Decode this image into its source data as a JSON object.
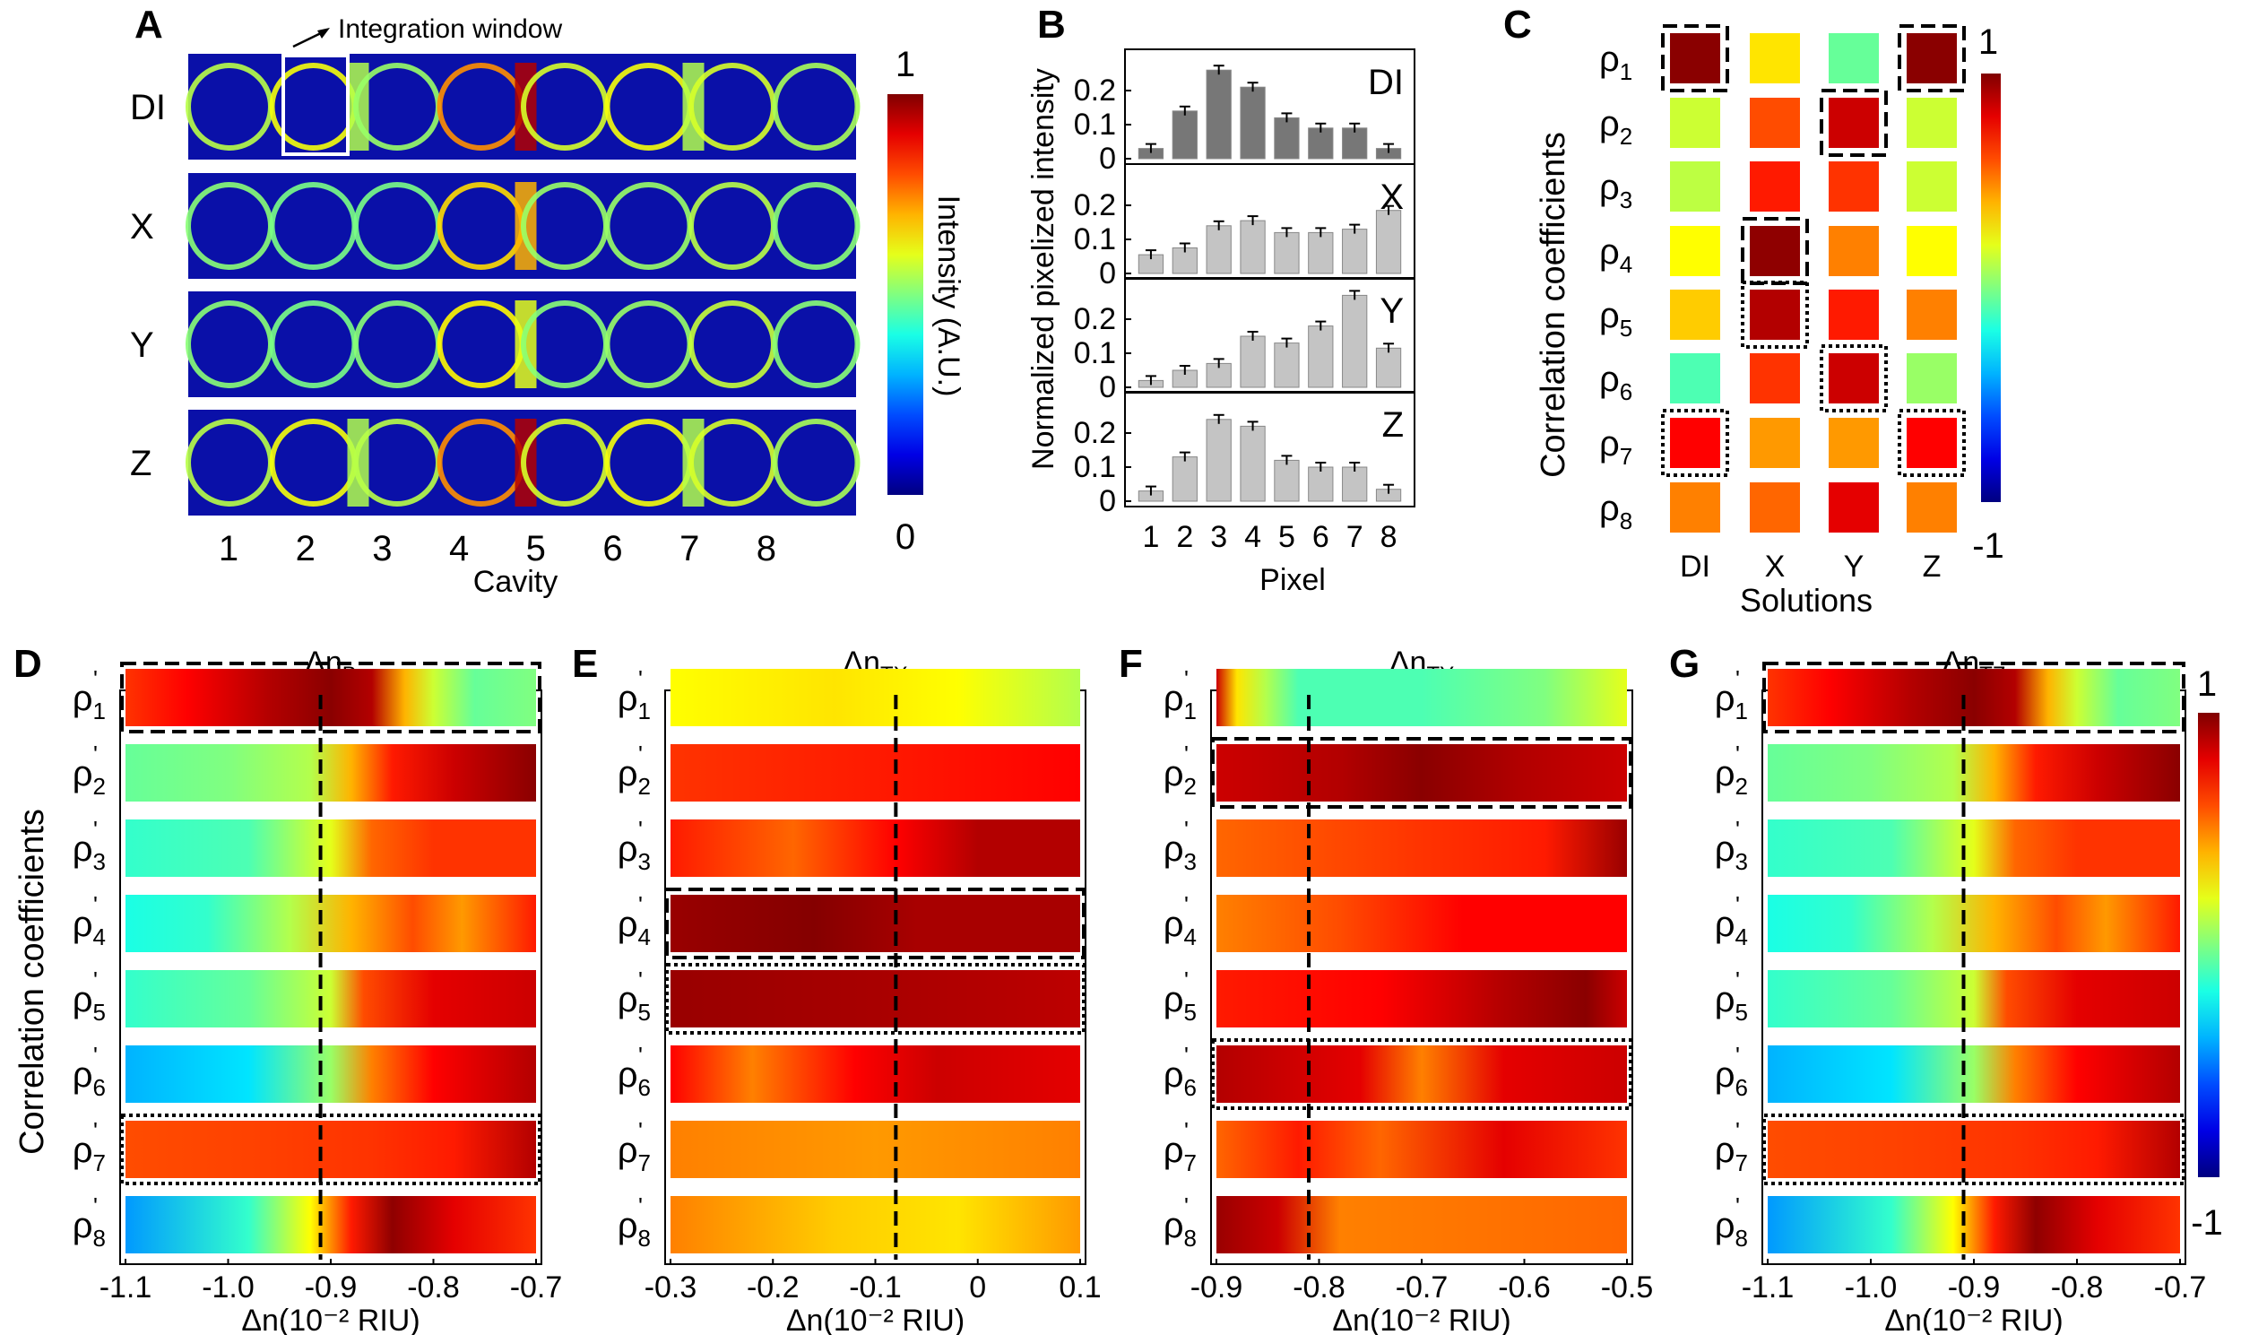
{
  "panels": {
    "A": {
      "label": "A",
      "annotation": "Integration window",
      "rows": [
        "DI",
        "X",
        "Y",
        "Z"
      ],
      "xticks": [
        "1",
        "2",
        "3",
        "4",
        "5",
        "6",
        "7",
        "8"
      ],
      "xlabel": "Cavity",
      "colorbar": {
        "max": "1",
        "min": "0",
        "label": "Intensity (A.U.)"
      }
    },
    "B": {
      "label": "B",
      "ylabel": "Normalized pixelized intensity",
      "xlabel": "Pixel",
      "xticks": [
        "1",
        "2",
        "3",
        "4",
        "5",
        "6",
        "7",
        "8"
      ],
      "yticks": [
        "0",
        "0.1",
        "0.2"
      ]
    },
    "C": {
      "label": "C",
      "ylabel": "Correlation coefficients",
      "xlabel": "Solutions",
      "cols": [
        "DI",
        "X",
        "Y",
        "Z"
      ],
      "rows": [
        "ρ1",
        "ρ2",
        "ρ3",
        "ρ4",
        "ρ5",
        "ρ6",
        "ρ7",
        "ρ8"
      ],
      "colorbar": {
        "max": "1",
        "min": "-1"
      }
    },
    "D": {
      "label": "D",
      "title": "Δn",
      "sub": "B",
      "xlabel": "Δn(10⁻² RIU)",
      "xticks": [
        "-1.1",
        "-1.0",
        "-0.9",
        "-0.8",
        "-0.7"
      ],
      "ylabel": "Correlation coefficients"
    },
    "E": {
      "label": "E",
      "title": "Δn",
      "sub": "TX",
      "xlabel": "Δn(10⁻² RIU)",
      "xticks": [
        "-0.3",
        "-0.2",
        "-0.1",
        "0",
        "0.1"
      ]
    },
    "F": {
      "label": "F",
      "title": "Δn",
      "sub": "TY",
      "xlabel": "Δn(10⁻² RIU)",
      "xticks": [
        "-0.9",
        "-0.8",
        "-0.7",
        "-0.6",
        "-0.5"
      ]
    },
    "G": {
      "label": "G",
      "title": "Δn",
      "sub": "TZ",
      "xlabel": "Δn(10⁻² RIU)",
      "xticks": [
        "-1.1",
        "-1.0",
        "-0.9",
        "-0.8",
        "-0.7"
      ],
      "colorbar": {
        "max": "1",
        "min": "-1"
      }
    }
  },
  "chart_data": [
    {
      "type": "bar",
      "panel": "B",
      "title": "",
      "xlabel": "Pixel",
      "ylabel": "Normalized pixelized intensity",
      "categories": [
        1,
        2,
        3,
        4,
        5,
        6,
        7,
        8
      ],
      "ylim": [
        0,
        0.3
      ],
      "series": [
        {
          "name": "DI",
          "values": [
            0.03,
            0.14,
            0.26,
            0.21,
            0.12,
            0.09,
            0.09,
            0.03
          ],
          "color": "#777777"
        },
        {
          "name": "X",
          "values": [
            0.055,
            0.075,
            0.14,
            0.155,
            0.12,
            0.12,
            0.13,
            0.185
          ],
          "color": "#c4c4c4"
        },
        {
          "name": "Y",
          "values": [
            0.02,
            0.05,
            0.07,
            0.15,
            0.13,
            0.18,
            0.27,
            0.115
          ],
          "color": "#c4c4c4"
        },
        {
          "name": "Z",
          "values": [
            0.03,
            0.13,
            0.24,
            0.22,
            0.12,
            0.1,
            0.1,
            0.035
          ],
          "color": "#c4c4c4"
        }
      ]
    },
    {
      "type": "heatmap",
      "panel": "C",
      "xlabel": "Solutions",
      "ylabel": "Correlation coefficients",
      "categories": [
        "DI",
        "X",
        "Y",
        "Z"
      ],
      "rows": [
        "ρ1",
        "ρ2",
        "ρ3",
        "ρ4",
        "ρ5",
        "ρ6",
        "ρ7",
        "ρ8"
      ],
      "clim": [
        -1,
        1
      ],
      "values": [
        [
          0.98,
          0.3,
          -0.05,
          0.98
        ],
        [
          0.15,
          0.6,
          0.85,
          0.15
        ],
        [
          0.12,
          0.7,
          0.65,
          0.15
        ],
        [
          0.25,
          0.97,
          0.5,
          0.25
        ],
        [
          0.35,
          0.9,
          0.7,
          0.5
        ],
        [
          -0.1,
          0.65,
          0.85,
          0.05
        ],
        [
          0.75,
          0.45,
          0.45,
          0.75
        ],
        [
          0.5,
          0.55,
          0.8,
          0.5
        ]
      ]
    },
    {
      "type": "heatmap",
      "panel": "D",
      "xlabel": "Δn(10⁻² RIU)",
      "xlim": [
        -1.1,
        -0.7
      ],
      "marker_x": -0.91,
      "clim": [
        -1,
        1
      ],
      "rows": [
        "ρ1'",
        "ρ2'",
        "ρ3'",
        "ρ4'",
        "ρ5'",
        "ρ6'",
        "ρ7'",
        "ρ8'"
      ],
      "profiles": [
        [
          [
            0,
            0.65
          ],
          [
            0.15,
            0.75
          ],
          [
            0.35,
            0.9
          ],
          [
            0.5,
            0.98
          ],
          [
            0.6,
            0.9
          ],
          [
            0.68,
            0.4
          ],
          [
            0.75,
            0.15
          ],
          [
            0.85,
            -0.05
          ],
          [
            1,
            0.0
          ]
        ],
        [
          [
            0,
            -0.05
          ],
          [
            0.25,
            0.0
          ],
          [
            0.45,
            0.1
          ],
          [
            0.55,
            0.4
          ],
          [
            0.65,
            0.7
          ],
          [
            0.8,
            0.85
          ],
          [
            1,
            0.98
          ]
        ],
        [
          [
            0,
            -0.15
          ],
          [
            0.3,
            -0.1
          ],
          [
            0.5,
            0.2
          ],
          [
            0.6,
            0.55
          ],
          [
            0.75,
            0.65
          ],
          [
            1,
            0.65
          ]
        ],
        [
          [
            0,
            -0.2
          ],
          [
            0.2,
            -0.15
          ],
          [
            0.4,
            0.1
          ],
          [
            0.55,
            0.4
          ],
          [
            0.7,
            0.6
          ],
          [
            0.82,
            0.45
          ],
          [
            1,
            0.7
          ]
        ],
        [
          [
            0,
            -0.15
          ],
          [
            0.3,
            -0.05
          ],
          [
            0.5,
            0.15
          ],
          [
            0.58,
            0.6
          ],
          [
            0.75,
            0.8
          ],
          [
            1,
            0.85
          ]
        ],
        [
          [
            0,
            -0.4
          ],
          [
            0.3,
            -0.3
          ],
          [
            0.5,
            0.05
          ],
          [
            0.6,
            0.5
          ],
          [
            0.75,
            0.75
          ],
          [
            1,
            0.9
          ]
        ],
        [
          [
            0,
            0.6
          ],
          [
            0.3,
            0.62
          ],
          [
            0.6,
            0.65
          ],
          [
            0.8,
            0.7
          ],
          [
            1,
            0.9
          ]
        ],
        [
          [
            0,
            -0.45
          ],
          [
            0.3,
            -0.15
          ],
          [
            0.45,
            0.25
          ],
          [
            0.55,
            0.7
          ],
          [
            0.65,
            0.97
          ],
          [
            0.8,
            0.8
          ],
          [
            1,
            0.65
          ]
        ]
      ]
    },
    {
      "type": "heatmap",
      "panel": "E",
      "xlabel": "Δn(10⁻² RIU)",
      "xlim": [
        -0.3,
        0.1
      ],
      "marker_x": -0.08,
      "clim": [
        -1,
        1
      ],
      "rows": [
        "ρ1'",
        "ρ2'",
        "ρ3'",
        "ρ4'",
        "ρ5'",
        "ρ6'",
        "ρ7'",
        "ρ8'"
      ],
      "profiles": [
        [
          [
            0,
            0.25
          ],
          [
            0.4,
            0.3
          ],
          [
            0.7,
            0.25
          ],
          [
            1,
            0.1
          ]
        ],
        [
          [
            0,
            0.65
          ],
          [
            0.5,
            0.7
          ],
          [
            1,
            0.75
          ]
        ],
        [
          [
            0,
            0.7
          ],
          [
            0.3,
            0.55
          ],
          [
            0.55,
            0.75
          ],
          [
            0.75,
            0.9
          ],
          [
            1,
            0.9
          ]
        ],
        [
          [
            0,
            0.95
          ],
          [
            0.35,
            0.99
          ],
          [
            0.6,
            0.92
          ],
          [
            1,
            0.92
          ]
        ],
        [
          [
            0,
            0.95
          ],
          [
            0.5,
            0.92
          ],
          [
            1,
            0.88
          ]
        ],
        [
          [
            0,
            0.75
          ],
          [
            0.2,
            0.5
          ],
          [
            0.45,
            0.75
          ],
          [
            0.65,
            0.85
          ],
          [
            1,
            0.8
          ]
        ],
        [
          [
            0,
            0.5
          ],
          [
            0.5,
            0.45
          ],
          [
            1,
            0.5
          ]
        ],
        [
          [
            0,
            0.5
          ],
          [
            0.4,
            0.35
          ],
          [
            0.7,
            0.3
          ],
          [
            1,
            0.45
          ]
        ]
      ]
    },
    {
      "type": "heatmap",
      "panel": "F",
      "xlabel": "Δn(10⁻² RIU)",
      "xlim": [
        -0.9,
        -0.5
      ],
      "marker_x": -0.81,
      "clim": [
        -1,
        1
      ],
      "rows": [
        "ρ1'",
        "ρ2'",
        "ρ3'",
        "ρ4'",
        "ρ5'",
        "ρ6'",
        "ρ7'",
        "ro8'"
      ],
      "profiles": [
        [
          [
            0,
            0.85
          ],
          [
            0.05,
            0.3
          ],
          [
            0.12,
            0.1
          ],
          [
            0.2,
            -0.1
          ],
          [
            0.5,
            -0.1
          ],
          [
            0.8,
            0.0
          ],
          [
            1,
            0.2
          ]
        ],
        [
          [
            0,
            0.85
          ],
          [
            0.3,
            0.9
          ],
          [
            0.5,
            0.98
          ],
          [
            0.75,
            0.9
          ],
          [
            1,
            0.85
          ]
        ],
        [
          [
            0,
            0.55
          ],
          [
            0.5,
            0.65
          ],
          [
            0.8,
            0.7
          ],
          [
            1,
            0.95
          ]
        ],
        [
          [
            0,
            0.5
          ],
          [
            0.3,
            0.6
          ],
          [
            0.6,
            0.75
          ],
          [
            1,
            0.75
          ]
        ],
        [
          [
            0,
            0.7
          ],
          [
            0.4,
            0.75
          ],
          [
            0.7,
            0.9
          ],
          [
            0.9,
            0.98
          ],
          [
            1,
            0.85
          ]
        ],
        [
          [
            0,
            0.9
          ],
          [
            0.35,
            0.8
          ],
          [
            0.5,
            0.5
          ],
          [
            0.7,
            0.8
          ],
          [
            1,
            0.85
          ]
        ],
        [
          [
            0,
            0.55
          ],
          [
            0.2,
            0.7
          ],
          [
            0.4,
            0.55
          ],
          [
            0.7,
            0.8
          ],
          [
            1,
            0.65
          ]
        ],
        [
          [
            0,
            0.95
          ],
          [
            0.15,
            0.85
          ],
          [
            0.3,
            0.5
          ],
          [
            1,
            0.55
          ]
        ]
      ]
    },
    {
      "type": "heatmap",
      "panel": "G",
      "xlabel": "Δn(10⁻² RIU)",
      "xlim": [
        -1.1,
        -0.7
      ],
      "marker_x": -0.91,
      "clim": [
        -1,
        1
      ],
      "rows": [
        "ρ1'",
        "ρ2'",
        "ρ3'",
        "ρ4'",
        "ρ5'",
        "ρ6'",
        "ρ7'",
        "ρ8'"
      ],
      "profiles": [
        [
          [
            0,
            0.65
          ],
          [
            0.15,
            0.75
          ],
          [
            0.35,
            0.9
          ],
          [
            0.5,
            0.98
          ],
          [
            0.6,
            0.9
          ],
          [
            0.68,
            0.4
          ],
          [
            0.75,
            0.15
          ],
          [
            0.85,
            -0.05
          ],
          [
            1,
            0.0
          ]
        ],
        [
          [
            0,
            -0.05
          ],
          [
            0.25,
            0.0
          ],
          [
            0.45,
            0.1
          ],
          [
            0.55,
            0.4
          ],
          [
            0.65,
            0.7
          ],
          [
            0.8,
            0.85
          ],
          [
            1,
            0.98
          ]
        ],
        [
          [
            0,
            -0.15
          ],
          [
            0.3,
            -0.1
          ],
          [
            0.5,
            0.2
          ],
          [
            0.6,
            0.55
          ],
          [
            0.75,
            0.65
          ],
          [
            1,
            0.65
          ]
        ],
        [
          [
            0,
            -0.2
          ],
          [
            0.2,
            -0.15
          ],
          [
            0.4,
            0.1
          ],
          [
            0.55,
            0.4
          ],
          [
            0.7,
            0.6
          ],
          [
            0.82,
            0.45
          ],
          [
            1,
            0.7
          ]
        ],
        [
          [
            0,
            -0.15
          ],
          [
            0.3,
            -0.05
          ],
          [
            0.5,
            0.15
          ],
          [
            0.58,
            0.6
          ],
          [
            0.75,
            0.8
          ],
          [
            1,
            0.85
          ]
        ],
        [
          [
            0,
            -0.4
          ],
          [
            0.3,
            -0.3
          ],
          [
            0.5,
            0.05
          ],
          [
            0.6,
            0.5
          ],
          [
            0.75,
            0.75
          ],
          [
            1,
            0.9
          ]
        ],
        [
          [
            0,
            0.6
          ],
          [
            0.3,
            0.62
          ],
          [
            0.6,
            0.65
          ],
          [
            0.8,
            0.7
          ],
          [
            1,
            0.9
          ]
        ],
        [
          [
            0,
            -0.45
          ],
          [
            0.3,
            -0.15
          ],
          [
            0.45,
            0.25
          ],
          [
            0.55,
            0.7
          ],
          [
            0.65,
            0.97
          ],
          [
            0.8,
            0.8
          ],
          [
            1,
            0.65
          ]
        ]
      ]
    }
  ]
}
